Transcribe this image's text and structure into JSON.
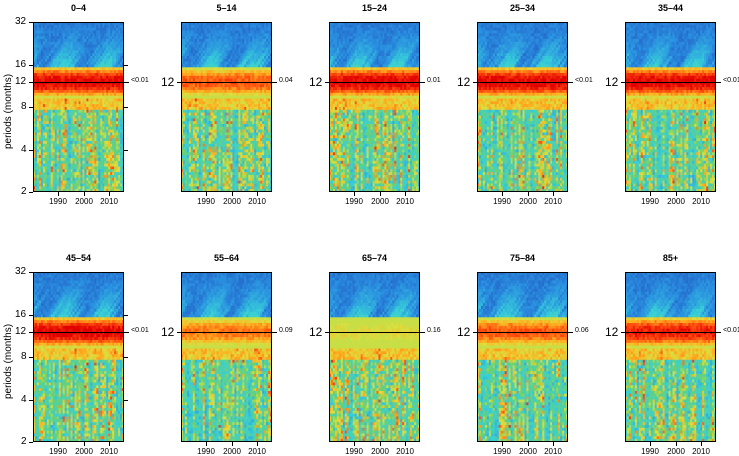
{
  "chart_data": {
    "type": "heatmap",
    "description_type": "wavelet power spectra",
    "ylabel": "periods (months)",
    "y_axis": "log2",
    "ylim": [
      2,
      32
    ],
    "xlim": [
      1980,
      2016
    ],
    "y_ticks_full": [
      "2",
      "4",
      "8",
      "12",
      "16",
      "32"
    ],
    "y_tick_values_full": [
      2,
      4,
      8,
      12,
      16,
      32
    ],
    "y_ticks_short": [
      "12"
    ],
    "x_ticks": [
      "1990",
      "2000",
      "2010"
    ],
    "x_tick_values": [
      1990,
      2000,
      2010
    ],
    "reference_period": 12,
    "colormap": [
      "#1f3fb0",
      "#2a8fe0",
      "#38d0d8",
      "#6fd06a",
      "#d8e040",
      "#ffb020",
      "#ff5010",
      "#e00000"
    ],
    "panels": [
      {
        "title": "0–4",
        "pvalue": "<0.01",
        "power_at_12": 1.0
      },
      {
        "title": "5–14",
        "pvalue": "0.04",
        "power_at_12": 0.85
      },
      {
        "title": "15–24",
        "pvalue": "0.01",
        "power_at_12": 1.0
      },
      {
        "title": "25–34",
        "pvalue": "<0.01",
        "power_at_12": 1.0
      },
      {
        "title": "35–44",
        "pvalue": "<0.01",
        "power_at_12": 1.0
      },
      {
        "title": "45–54",
        "pvalue": "<0.01",
        "power_at_12": 1.0
      },
      {
        "title": "55–64",
        "pvalue": "0.09",
        "power_at_12": 0.8
      },
      {
        "title": "65–74",
        "pvalue": "0.16",
        "power_at_12": 0.6
      },
      {
        "title": "75–84",
        "pvalue": "0.06",
        "power_at_12": 0.85
      },
      {
        "title": "85+",
        "pvalue": "<0.01",
        "power_at_12": 0.95
      }
    ]
  }
}
